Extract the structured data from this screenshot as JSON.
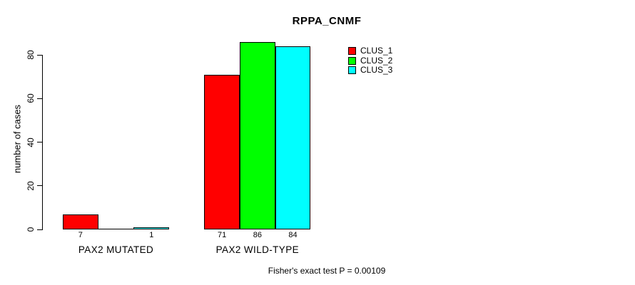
{
  "chart_data": {
    "type": "bar",
    "title": "RPPA_CNMF",
    "ylabel": "number of cases",
    "xlabel": "",
    "categories": [
      "PAX2 MUTATED",
      "PAX2 WILD-TYPE"
    ],
    "series": [
      {
        "name": "CLUS_1",
        "color": "#ff0000",
        "values": [
          7,
          71
        ]
      },
      {
        "name": "CLUS_2",
        "color": "#00ff00",
        "values": [
          0,
          86
        ]
      },
      {
        "name": "CLUS_3",
        "color": "#00ffff",
        "values": [
          1,
          84
        ]
      }
    ],
    "bar_value_labels": [
      [
        "7",
        "",
        "1"
      ],
      [
        "71",
        "86",
        "84"
      ]
    ],
    "yticks": [
      0,
      20,
      40,
      60,
      80
    ],
    "ylim": [
      0,
      86
    ],
    "grid": false,
    "legend": {
      "position": "top-right-inside",
      "entries": [
        "CLUS_1",
        "CLUS_2",
        "CLUS_3"
      ]
    },
    "annotation": "Fisher's exact test P = 0.00109",
    "colors": {
      "bar_border": "#000000",
      "axis": "#000000",
      "text": "#000000",
      "background": "#ffffff"
    }
  }
}
